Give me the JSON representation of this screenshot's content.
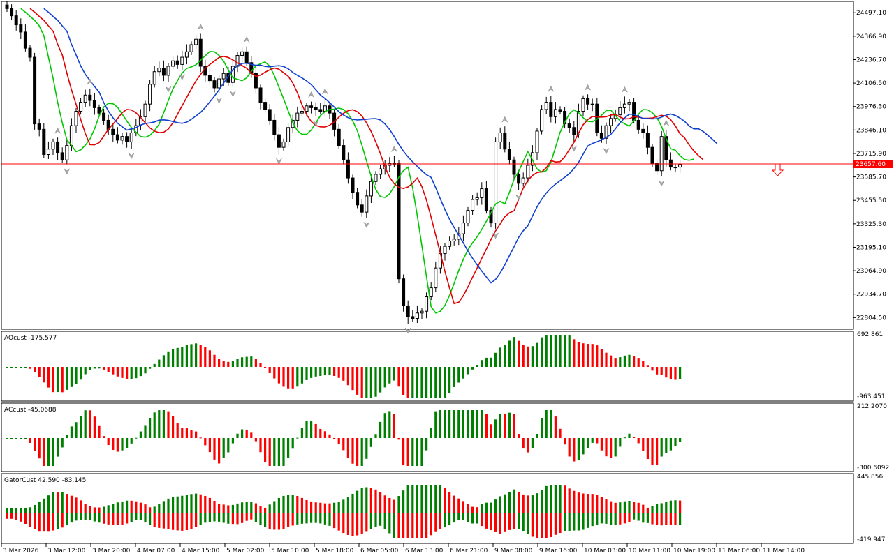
{
  "chart_data": [
    {
      "type": "candlestick",
      "title": "",
      "ylim": [
        22740,
        24560
      ],
      "y_ticks": [
        24497.1,
        24366.9,
        24236.7,
        24106.5,
        23976.3,
        23846.1,
        23715.9,
        23585.7,
        23455.5,
        23325.3,
        23195.1,
        23064.9,
        22934.7,
        22804.5
      ],
      "y_tick_labels": [
        "24497.10",
        "24366.90",
        "24236.70",
        "24106.50",
        "23976.30",
        "23846.10",
        "23715.90",
        "23585.70",
        "23455.50",
        "23325.30",
        "23195.10",
        "23064.90",
        "22934.70",
        "22804.50"
      ],
      "current_price": 23657.6,
      "current_price_label": "23657.60",
      "current_price_color": "#ff0000",
      "candle_up_color": "#ffffff",
      "candle_down_color": "#000000",
      "ohlc_close": [
        24520,
        24480,
        24430,
        24390,
        24300,
        24250,
        23880,
        23850,
        23710,
        23740,
        23780,
        23720,
        23680,
        23760,
        23870,
        23950,
        24000,
        24040,
        24010,
        23970,
        23940,
        23900,
        23850,
        23820,
        23790,
        23810,
        23780,
        23830,
        23870,
        23920,
        23990,
        24100,
        24170,
        24190,
        24150,
        24200,
        24230,
        24210,
        24250,
        24280,
        24320,
        24350,
        24200,
        24150,
        24120,
        24080,
        24130,
        24160,
        24110,
        24200,
        24260,
        24280,
        24220,
        24160,
        24080,
        24000,
        23960,
        23900,
        23820,
        23750,
        23780,
        23860,
        23900,
        23940,
        23950,
        23980,
        23970,
        23960,
        23950,
        23980,
        23940,
        23850,
        23760,
        23680,
        23580,
        23500,
        23430,
        23390,
        23480,
        23560,
        23600,
        23630,
        23650,
        23660,
        23660,
        23020,
        22870,
        22810,
        22800,
        22830,
        22840,
        22920,
        22970,
        23080,
        23160,
        23200,
        23230,
        23240,
        23270,
        23330,
        23400,
        23460,
        23470,
        23520,
        23400,
        23330,
        23780,
        23830,
        23740,
        23680,
        23600,
        23550,
        23580,
        23650,
        23720,
        23840,
        23960,
        24000,
        23920,
        23960,
        23950,
        23880,
        23860,
        23820,
        23950,
        24020,
        23990,
        23990,
        23830,
        23800,
        23870,
        23910,
        23930,
        23970,
        23990,
        24000,
        23900,
        23850,
        23830,
        23750,
        23660,
        23620,
        23810,
        23680,
        23640,
        23640,
        23655
      ],
      "awesome_oscillator": {
        "label": "AOcust -175.577",
        "ylim": [
          -963.451,
          692.861
        ],
        "tick_labels": [
          "692.861",
          "-963.451"
        ]
      },
      "accelerator_oscillator": {
        "label": "ACcust -45.0688",
        "ylim": [
          -300.6092,
          212.207
        ],
        "tick_labels": [
          "212.2070",
          "-300.6092"
        ]
      },
      "gator": {
        "label": "GatorCust 42.590 -83.145",
        "ylim": [
          -419.947,
          445.856
        ],
        "tick_labels": [
          "445.856",
          "-419.947"
        ]
      },
      "x_tick_labels": [
        "3 Mar 2026",
        "3 Mar 12:00",
        "3 Mar 20:00",
        "4 Mar 07:00",
        "4 Mar 15:00",
        "5 Mar 02:00",
        "5 Mar 10:00",
        "5 Mar 18:00",
        "6 Mar 05:00",
        "6 Mar 13:00",
        "6 Mar 21:00",
        "9 Mar 08:00",
        "9 Mar 16:00",
        "10 Mar 03:00",
        "10 Mar 11:00",
        "10 Mar 19:00",
        "11 Mar 06:00",
        "11 Mar 14:00"
      ],
      "series": [
        {
          "name": "",
          "color": "#00c800"
        },
        {
          "name": "",
          "color": "#e00000"
        },
        {
          "name": "",
          "color": "#1040d0"
        }
      ],
      "bar_colors": {
        "up": "#008000",
        "down": "#ff0000"
      },
      "grid": false
    }
  ]
}
